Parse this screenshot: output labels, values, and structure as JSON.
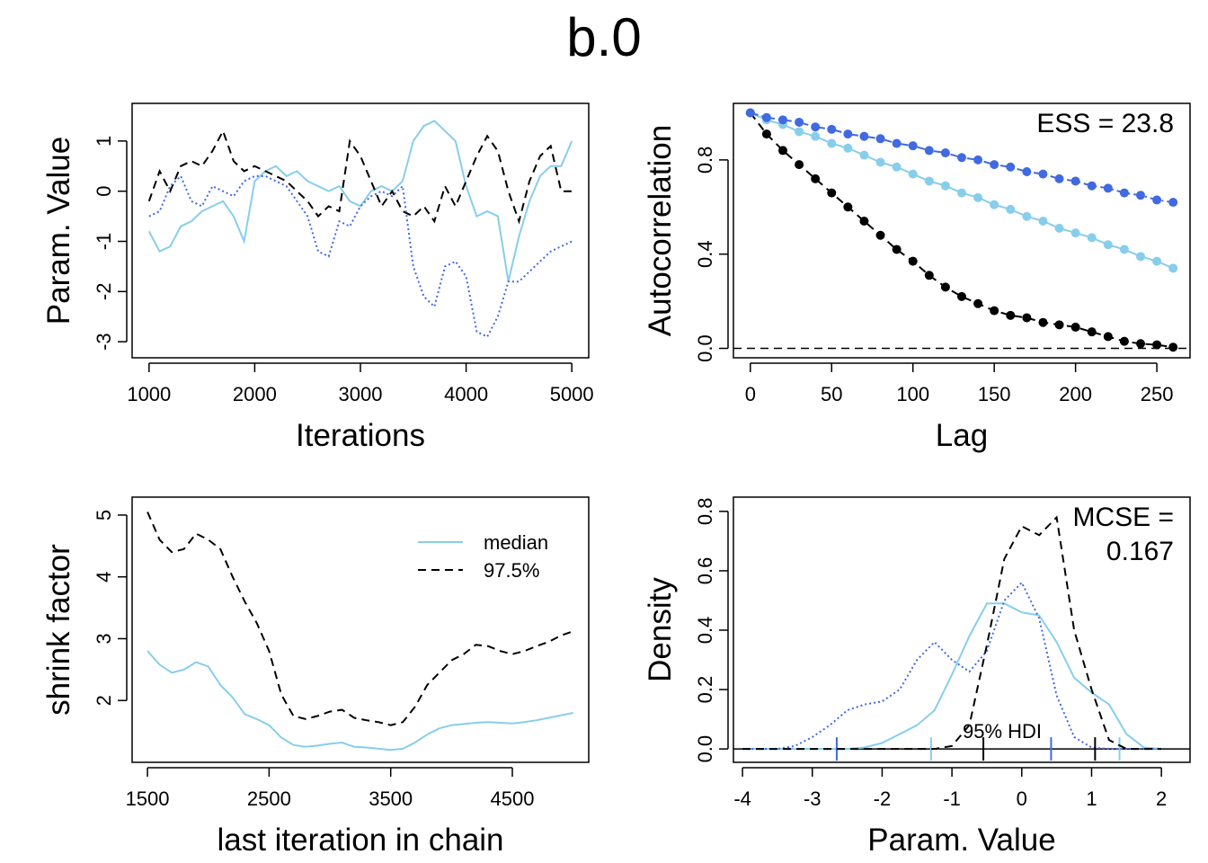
{
  "title": "b.0",
  "chart_data": [
    {
      "type": "line",
      "xlabel": "Iterations",
      "ylabel": "Param. Value",
      "x": [
        1000,
        1100,
        1200,
        1300,
        1400,
        1500,
        1600,
        1700,
        1800,
        1900,
        2000,
        2100,
        2200,
        2300,
        2400,
        2500,
        2600,
        2700,
        2800,
        2900,
        3000,
        3100,
        3200,
        3300,
        3400,
        3500,
        3600,
        3700,
        3800,
        3900,
        4000,
        4100,
        4200,
        4300,
        4400,
        4500,
        4600,
        4700,
        4800,
        4900,
        5000
      ],
      "series": [
        {
          "color": "#87ceeb",
          "dash": "solid",
          "values": [
            -0.8,
            -1.2,
            -1.1,
            -0.7,
            -0.6,
            -0.4,
            -0.3,
            -0.2,
            -0.5,
            -1.0,
            0.2,
            0.4,
            0.5,
            0.3,
            0.4,
            0.2,
            0.1,
            0.0,
            0.1,
            -0.2,
            -0.3,
            0.0,
            0.1,
            0.0,
            0.2,
            1.0,
            1.3,
            1.4,
            1.2,
            1.0,
            0.1,
            -0.5,
            -0.4,
            -0.5,
            -1.8,
            -0.9,
            -0.2,
            0.3,
            0.5,
            0.5,
            1.0
          ]
        },
        {
          "color": "#000000",
          "dash": "dashed",
          "values": [
            -0.2,
            0.4,
            0.0,
            0.5,
            0.6,
            0.5,
            0.8,
            1.2,
            0.6,
            0.4,
            0.5,
            0.4,
            0.3,
            0.2,
            0.0,
            -0.2,
            -0.5,
            -0.3,
            -0.4,
            1.0,
            0.7,
            0.2,
            -0.3,
            0.0,
            -0.4,
            -0.5,
            -0.3,
            -0.6,
            0.1,
            -0.3,
            0.2,
            0.7,
            1.1,
            0.8,
            0.0,
            -0.6,
            0.2,
            0.7,
            0.9,
            0.0,
            0.0
          ]
        },
        {
          "color": "#4169e1",
          "dash": "dotted",
          "values": [
            -0.5,
            -0.4,
            0.1,
            0.3,
            -0.2,
            -0.3,
            0.1,
            0.0,
            -0.1,
            0.2,
            0.3,
            0.3,
            0.2,
            0.1,
            -0.2,
            -0.5,
            -1.2,
            -1.3,
            -0.6,
            -0.7,
            -0.3,
            -0.1,
            0.0,
            -0.1,
            0.1,
            -1.5,
            -2.1,
            -2.3,
            -1.5,
            -1.4,
            -1.7,
            -2.8,
            -2.9,
            -2.5,
            -1.8,
            -1.8,
            -1.6,
            -1.4,
            -1.2,
            -1.1,
            -1.0
          ]
        }
      ],
      "xlim": [
        840,
        5160
      ],
      "xticks": [
        1000,
        2000,
        3000,
        4000,
        5000
      ],
      "ylim": [
        -3.32,
        1.75
      ],
      "yticks": [
        -3,
        -2,
        -1,
        0,
        1
      ]
    },
    {
      "type": "line",
      "xlabel": "Lag",
      "ylabel": "Autocorrelation",
      "markers": true,
      "annotation": [
        "ESS = 23.8"
      ],
      "hline": {
        "value": 0,
        "dash": "dashed"
      },
      "x": [
        0,
        10,
        20,
        30,
        40,
        50,
        60,
        70,
        80,
        90,
        100,
        110,
        120,
        130,
        140,
        150,
        160,
        170,
        180,
        190,
        200,
        210,
        220,
        230,
        240,
        250,
        260
      ],
      "series": [
        {
          "color": "#000000",
          "dash": "dashed",
          "values": [
            1.0,
            0.91,
            0.84,
            0.78,
            0.72,
            0.66,
            0.6,
            0.54,
            0.48,
            0.42,
            0.37,
            0.31,
            0.26,
            0.22,
            0.19,
            0.16,
            0.14,
            0.13,
            0.11,
            0.1,
            0.09,
            0.07,
            0.05,
            0.03,
            0.02,
            0.015,
            0.005
          ]
        },
        {
          "color": "#87ceeb",
          "dash": "solid",
          "values": [
            1.0,
            0.97,
            0.95,
            0.92,
            0.9,
            0.87,
            0.85,
            0.82,
            0.79,
            0.77,
            0.74,
            0.71,
            0.69,
            0.66,
            0.64,
            0.61,
            0.59,
            0.56,
            0.54,
            0.51,
            0.49,
            0.47,
            0.44,
            0.42,
            0.39,
            0.37,
            0.34
          ]
        },
        {
          "color": "#4169e1",
          "dash": "dotdash",
          "values": [
            1.0,
            0.98,
            0.97,
            0.96,
            0.94,
            0.93,
            0.91,
            0.9,
            0.89,
            0.87,
            0.86,
            0.84,
            0.83,
            0.81,
            0.8,
            0.78,
            0.77,
            0.75,
            0.74,
            0.72,
            0.71,
            0.69,
            0.68,
            0.66,
            0.65,
            0.63,
            0.62
          ]
        }
      ],
      "xlim": [
        -10.4,
        270.4
      ],
      "xticks": [
        0,
        50,
        100,
        150,
        200,
        250
      ],
      "ylim": [
        -0.04,
        1.04
      ],
      "yticks": [
        {
          "value": 0,
          "label": "0.0"
        },
        {
          "value": 0.4,
          "label": "0.4"
        },
        {
          "value": 0.8,
          "label": "0.8"
        }
      ]
    },
    {
      "type": "line",
      "xlabel": "last iteration in chain",
      "ylabel": "shrink factor",
      "legend": "topright",
      "x": [
        1500,
        1600,
        1700,
        1800,
        1900,
        2000,
        2100,
        2200,
        2300,
        2400,
        2500,
        2600,
        2700,
        2800,
        2900,
        3000,
        3100,
        3200,
        3300,
        3400,
        3500,
        3600,
        3700,
        3800,
        3900,
        4000,
        4100,
        4200,
        4300,
        4400,
        4500,
        4600,
        4700,
        4800,
        4900,
        5000
      ],
      "series": [
        {
          "name": "median",
          "color": "#87ceeb",
          "dash": "solid",
          "values": [
            2.8,
            2.58,
            2.45,
            2.5,
            2.62,
            2.55,
            2.25,
            2.05,
            1.78,
            1.7,
            1.6,
            1.4,
            1.28,
            1.25,
            1.27,
            1.3,
            1.32,
            1.25,
            1.24,
            1.22,
            1.2,
            1.22,
            1.32,
            1.45,
            1.55,
            1.6,
            1.62,
            1.64,
            1.65,
            1.64,
            1.63,
            1.65,
            1.68,
            1.72,
            1.76,
            1.8
          ]
        },
        {
          "name": "97.5%",
          "color": "#000000",
          "dash": "dashed",
          "values": [
            5.05,
            4.6,
            4.4,
            4.45,
            4.7,
            4.6,
            4.45,
            4.0,
            3.6,
            3.25,
            2.8,
            2.1,
            1.75,
            1.7,
            1.75,
            1.82,
            1.85,
            1.72,
            1.68,
            1.65,
            1.6,
            1.65,
            1.9,
            2.25,
            2.45,
            2.65,
            2.75,
            2.9,
            2.88,
            2.8,
            2.75,
            2.8,
            2.88,
            2.95,
            3.05,
            3.12
          ]
        }
      ],
      "xlim": [
        1374,
        5128
      ],
      "xticks": [
        1500,
        2500,
        3500,
        4500
      ],
      "ylim": [
        1.0,
        5.29
      ],
      "yticks": [
        2,
        3,
        4,
        5
      ]
    },
    {
      "type": "line",
      "xlabel": "Param. Value",
      "ylabel": "Density",
      "annotation": [
        "MCSE =",
        "0.167"
      ],
      "hdi_label": "95% HDI",
      "hline": {
        "value": 0,
        "dash": "solid"
      },
      "x": [
        -4,
        -3.75,
        -3.5,
        -3.25,
        -3,
        -2.75,
        -2.5,
        -2.25,
        -2,
        -1.75,
        -1.5,
        -1.25,
        -1,
        -0.75,
        -0.5,
        -0.25,
        0,
        0.25,
        0.5,
        0.75,
        1,
        1.25,
        1.5,
        1.75,
        2
      ],
      "series": [
        {
          "color": "#87ceeb",
          "dash": "solid",
          "hdi": [
            -1.3,
            1.4
          ],
          "values": [
            0,
            0,
            0,
            0,
            0,
            0,
            0,
            0.005,
            0.02,
            0.05,
            0.08,
            0.13,
            0.25,
            0.38,
            0.49,
            0.49,
            0.46,
            0.45,
            0.36,
            0.24,
            0.19,
            0.15,
            0.05,
            0.005,
            0
          ]
        },
        {
          "color": "#4169e1",
          "dash": "dotted",
          "hdi": [
            -2.65,
            0.42
          ],
          "values": [
            0,
            0,
            0,
            0.01,
            0.04,
            0.08,
            0.13,
            0.15,
            0.16,
            0.2,
            0.3,
            0.36,
            0.3,
            0.26,
            0.33,
            0.5,
            0.56,
            0.44,
            0.18,
            0.04,
            0.005,
            0,
            0,
            0,
            0
          ]
        },
        {
          "color": "#000000",
          "dash": "dashed",
          "hdi": [
            -0.55,
            1.05
          ],
          "values": [
            0,
            0,
            0,
            0,
            0,
            0,
            0,
            0,
            0,
            0,
            0,
            0,
            0.01,
            0.08,
            0.35,
            0.64,
            0.75,
            0.72,
            0.78,
            0.4,
            0.2,
            0.03,
            0,
            0,
            0
          ]
        }
      ],
      "xlim": [
        -4.13,
        2.41
      ],
      "xticks": [
        -4,
        -3,
        -2,
        -1,
        0,
        1,
        2
      ],
      "ylim": [
        -0.045,
        0.848
      ],
      "yticks": [
        {
          "value": 0,
          "label": "0.0"
        },
        {
          "value": 0.2,
          "label": "0.2"
        },
        {
          "value": 0.4,
          "label": "0.4"
        },
        {
          "value": 0.6,
          "label": "0.6"
        },
        {
          "value": 0.8,
          "label": "0.8"
        }
      ]
    }
  ]
}
